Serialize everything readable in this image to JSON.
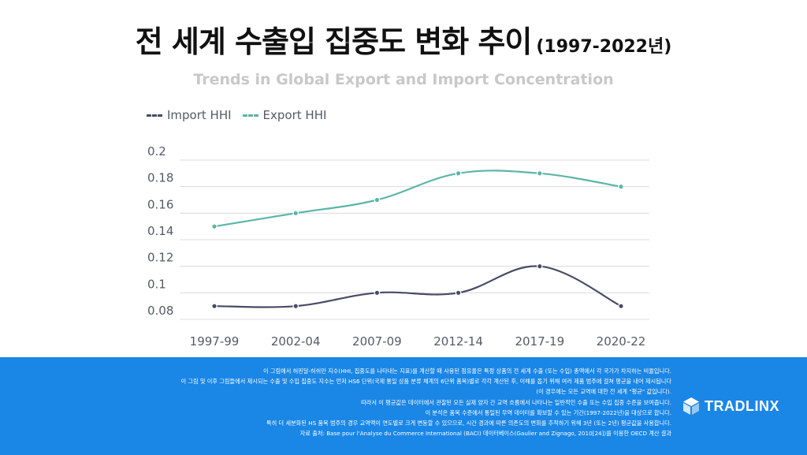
{
  "header": {
    "title": "전 세계 수출입 집중도 변화 추이",
    "title_years": "(1997-2022년)",
    "subtitle": "Trends in Global Export and Import Concentration"
  },
  "chart_data": {
    "type": "line",
    "categories": [
      "1997-99",
      "2002-04",
      "2007-09",
      "2012-14",
      "2017-19",
      "2020-22"
    ],
    "series": [
      {
        "name": "Import HHI",
        "color": "#4a4a66",
        "values": [
          0.09,
          0.09,
          0.1,
          0.1,
          0.12,
          0.09
        ]
      },
      {
        "name": "Export HHI",
        "color": "#5bb5a7",
        "values": [
          0.15,
          0.16,
          0.17,
          0.19,
          0.19,
          0.18
        ]
      }
    ],
    "ylim": [
      0.08,
      0.2
    ],
    "yticks": [
      "0.08",
      "0.1",
      "0.12",
      "0.14",
      "0.16",
      "0.18",
      "0.2"
    ],
    "grid": true,
    "legend_position": "top-left"
  },
  "footer": {
    "notes": [
      "이 그림에서 허핀달-허쉬만 지수(HHI, 집중도를 나타내는 지표)를 계산할 때 사용된 점유율은 특정 상품의 전 세계 수출 (또는 수입) 총액에서 각 국가가 차지하는 비율입니다.",
      "이 그림 및 이후 그림들에서 제시되는 수출 및 수입 집중도 지수는 먼저 HS6 단위(국제 통일 상품 분류 체계의 6단위 품목)별로 각각 계산된 후, 이해를 돕기 위해 여러 제품 범주에 걸쳐 평균을 내어 제시됩니다",
      "(이 경우에는 모든 교역에 대한 전 세계 \"평균\" 값입니다).",
      "따라서 이 평균값은 데이터에서 관찰된 모든 실제 양자 간 교역 흐름에서 나타나는 일반적인 수출 또는 수입 집중 수준을 보여줍니다.",
      "이 분석은 품목 수준에서 통일된 무역 데이터를 확보할 수 있는 기간(1997-2022년)을 대상으로 합니다.",
      "특히 더 세분화된 HS 품목 범주의 경우 교역액이 연도별로 크게 변동할 수 있으므로, 시간 경과에 따른 의존도의 변화를 추적하기 위해 3년 (또는 2년) 평균값을 사용합니다.",
      "자료 출처: Base pour l'Analyse du Commerce International (BACI) 데이터베이스(Gaulier and Zignago, 2010[24])를 이용한 OECD 계산 결과"
    ],
    "brand": "TRADLINX"
  }
}
